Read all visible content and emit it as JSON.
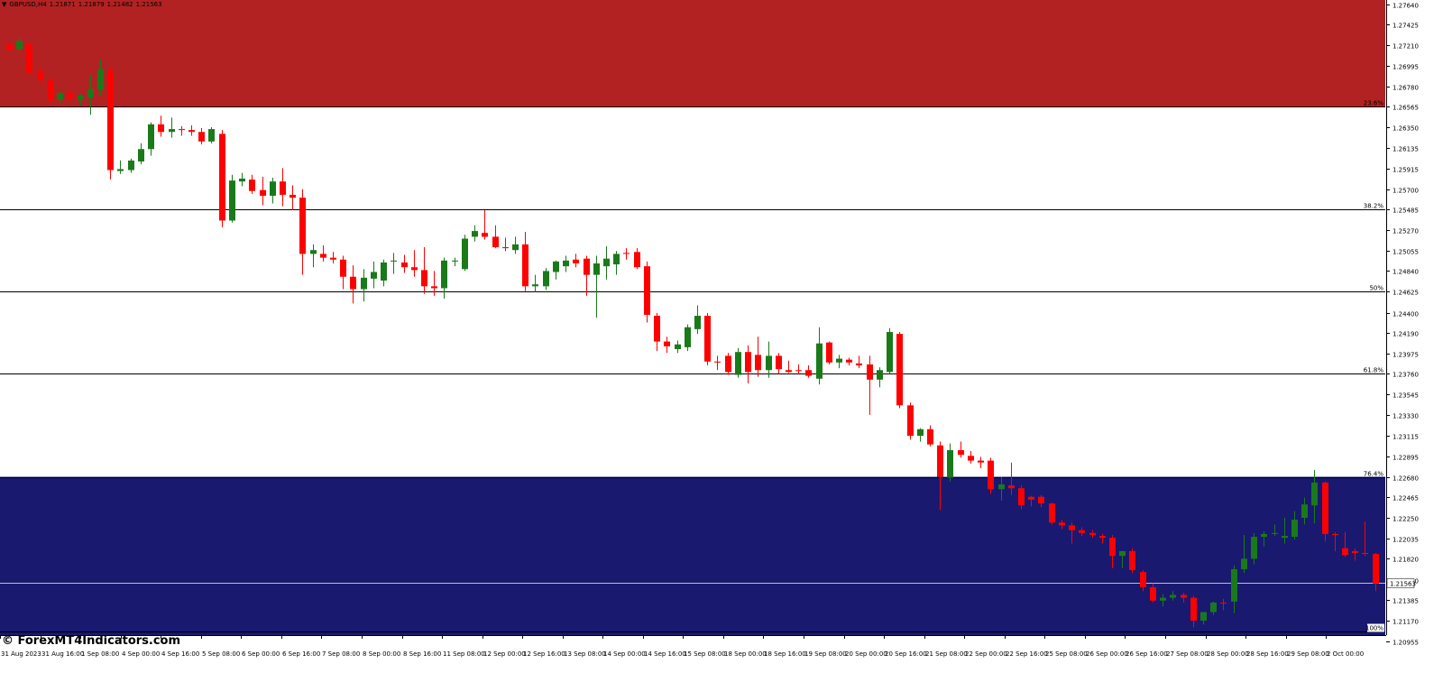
{
  "header": {
    "symbol": "GBPUSD,H4",
    "open": "1.21871",
    "high": "1.21879",
    "low": "1.21482",
    "close": "1.21563"
  },
  "watermark": "© ForexMT4Indicators.com",
  "colors": {
    "bull": "#1a7a1a",
    "bear": "#ff0000",
    "top_zone": "#b22222",
    "bottom_zone": "#191970",
    "fib_line": "#000000",
    "price_line": "#c0c0c0",
    "background": "#ffffff"
  },
  "chart_data": {
    "type": "candlestick",
    "timeframe": "H4",
    "ylim": [
      1.2095,
      1.2768
    ],
    "y_ticks": [
      "1.27640",
      "1.27425",
      "1.27210",
      "1.26995",
      "1.26780",
      "1.26565",
      "1.26350",
      "1.26135",
      "1.25915",
      "1.25700",
      "1.25485",
      "1.25270",
      "1.25055",
      "1.24840",
      "1.24625",
      "1.24400",
      "1.24190",
      "1.23975",
      "1.23760",
      "1.23545",
      "1.23330",
      "1.23115",
      "1.22895",
      "1.22680",
      "1.22465",
      "1.22250",
      "1.22035",
      "1.21820",
      "1.21600",
      "1.21385",
      "1.21170",
      "1.20955"
    ],
    "x_ticks": [
      "31 Aug 2023",
      "31 Aug 16:00",
      "1 Sep 08:00",
      "4 Sep 00:00",
      "4 Sep 16:00",
      "5 Sep 08:00",
      "6 Sep 00:00",
      "6 Sep 16:00",
      "7 Sep 08:00",
      "8 Sep 00:00",
      "8 Sep 16:00",
      "11 Sep 08:00",
      "12 Sep 00:00",
      "12 Sep 16:00",
      "13 Sep 08:00",
      "14 Sep 00:00",
      "14 Sep 16:00",
      "15 Sep 08:00",
      "18 Sep 00:00",
      "18 Sep 16:00",
      "19 Sep 08:00",
      "20 Sep 00:00",
      "20 Sep 16:00",
      "21 Sep 08:00",
      "22 Sep 00:00",
      "22 Sep 16:00",
      "25 Sep 08:00",
      "26 Sep 00:00",
      "26 Sep 16:00",
      "27 Sep 08:00",
      "28 Sep 00:00",
      "28 Sep 16:00",
      "29 Sep 08:00",
      "2 Oct 00:00"
    ],
    "fib_levels": [
      {
        "label": "23.6%",
        "price": 1.26565
      },
      {
        "label": "38.2%",
        "price": 1.25485
      },
      {
        "label": "50%",
        "price": 1.24625
      },
      {
        "label": "61.8%",
        "price": 1.2376
      },
      {
        "label": "76.4%",
        "price": 1.2268
      },
      {
        "label": "100%",
        "price": 1.2106
      }
    ],
    "current_price": "1.21563",
    "zones": [
      {
        "name": "upper",
        "from": 1.2768,
        "to": 1.26565
      },
      {
        "name": "lower",
        "from": 1.2268,
        "to": 1.20955
      }
    ],
    "candles": [
      [
        1.2722,
        1.2728,
        1.2712,
        1.2716
      ],
      [
        1.2717,
        1.273,
        1.2712,
        1.2726
      ],
      [
        1.2722,
        1.2725,
        1.269,
        1.2692
      ],
      [
        1.2693,
        1.27,
        1.268,
        1.2685
      ],
      [
        1.2684,
        1.2689,
        1.2661,
        1.2663
      ],
      [
        1.2664,
        1.2673,
        1.266,
        1.2671
      ],
      [
        1.2671,
        1.2675,
        1.2663,
        1.2665
      ],
      [
        1.2664,
        1.267,
        1.2658,
        1.2668
      ],
      [
        1.2666,
        1.269,
        1.2648,
        1.2675
      ],
      [
        1.2674,
        1.2706,
        1.2668,
        1.2696
      ],
      [
        1.2694,
        1.2697,
        1.258,
        1.259
      ],
      [
        1.2589,
        1.26,
        1.2586,
        1.2591
      ],
      [
        1.259,
        1.2602,
        1.2587,
        1.26
      ],
      [
        1.2599,
        1.2618,
        1.2596,
        1.2612
      ],
      [
        1.2612,
        1.264,
        1.2605,
        1.2638
      ],
      [
        1.2638,
        1.2647,
        1.2625,
        1.263
      ],
      [
        1.263,
        1.2645,
        1.2624,
        1.2633
      ],
      [
        1.2633,
        1.2636,
        1.2626,
        1.2632
      ],
      [
        1.2632,
        1.2637,
        1.2626,
        1.263
      ],
      [
        1.263,
        1.2634,
        1.2617,
        1.262
      ],
      [
        1.262,
        1.2635,
        1.2618,
        1.2633
      ],
      [
        1.2628,
        1.2632,
        1.253,
        1.2537
      ],
      [
        1.2537,
        1.2585,
        1.2535,
        1.2579
      ],
      [
        1.2578,
        1.2587,
        1.2573,
        1.2581
      ],
      [
        1.258,
        1.2585,
        1.2565,
        1.2568
      ],
      [
        1.2569,
        1.2583,
        1.2553,
        1.2563
      ],
      [
        1.2563,
        1.2582,
        1.2555,
        1.2578
      ],
      [
        1.2578,
        1.2592,
        1.2552,
        1.2564
      ],
      [
        1.2564,
        1.2574,
        1.2548,
        1.2561
      ],
      [
        1.2561,
        1.257,
        1.248,
        1.2502
      ],
      [
        1.2502,
        1.2512,
        1.2488,
        1.2506
      ],
      [
        1.2502,
        1.2511,
        1.2494,
        1.2498
      ],
      [
        1.2498,
        1.2504,
        1.2492,
        1.2496
      ],
      [
        1.2496,
        1.25,
        1.2465,
        1.2478
      ],
      [
        1.2478,
        1.249,
        1.245,
        1.2465
      ],
      [
        1.2465,
        1.2486,
        1.2452,
        1.2477
      ],
      [
        1.2476,
        1.2494,
        1.2466,
        1.2483
      ],
      [
        1.2474,
        1.2496,
        1.2468,
        1.2493
      ],
      [
        1.2494,
        1.2503,
        1.2481,
        1.2495
      ],
      [
        1.2493,
        1.2501,
        1.2482,
        1.2488
      ],
      [
        1.2488,
        1.2506,
        1.2478,
        1.2485
      ],
      [
        1.2485,
        1.2509,
        1.246,
        1.2468
      ],
      [
        1.2468,
        1.2484,
        1.2458,
        1.2466
      ],
      [
        1.2466,
        1.2498,
        1.2455,
        1.2495
      ],
      [
        1.2494,
        1.2498,
        1.2489,
        1.2495
      ],
      [
        1.2486,
        1.2522,
        1.2484,
        1.2518
      ],
      [
        1.252,
        1.2532,
        1.2515,
        1.2526
      ],
      [
        1.2524,
        1.2548,
        1.2517,
        1.252
      ],
      [
        1.252,
        1.2532,
        1.2508,
        1.2509
      ],
      [
        1.2509,
        1.2519,
        1.2505,
        1.2508
      ],
      [
        1.2506,
        1.252,
        1.2502,
        1.2512
      ],
      [
        1.2512,
        1.2525,
        1.2463,
        1.2468
      ],
      [
        1.2468,
        1.248,
        1.2462,
        1.247
      ],
      [
        1.2468,
        1.2487,
        1.2464,
        1.2484
      ],
      [
        1.2483,
        1.2495,
        1.2475,
        1.2494
      ],
      [
        1.2489,
        1.25,
        1.2483,
        1.2495
      ],
      [
        1.2496,
        1.2502,
        1.2488,
        1.2492
      ],
      [
        1.2497,
        1.25,
        1.2458,
        1.248
      ],
      [
        1.248,
        1.25,
        1.2435,
        1.2492
      ],
      [
        1.2489,
        1.251,
        1.2475,
        1.2497
      ],
      [
        1.2491,
        1.2505,
        1.248,
        1.2502
      ],
      [
        1.2503,
        1.2508,
        1.2496,
        1.2502
      ],
      [
        1.2504,
        1.2508,
        1.2486,
        1.2488
      ],
      [
        1.2489,
        1.2494,
        1.243,
        1.2438
      ],
      [
        1.2437,
        1.244,
        1.24,
        1.241
      ],
      [
        1.241,
        1.2415,
        1.2398,
        1.2405
      ],
      [
        1.2402,
        1.2411,
        1.2398,
        1.2407
      ],
      [
        1.2404,
        1.2428,
        1.24,
        1.2425
      ],
      [
        1.2423,
        1.2448,
        1.2418,
        1.2437
      ],
      [
        1.2437,
        1.244,
        1.2385,
        1.2389
      ],
      [
        1.2389,
        1.2395,
        1.238,
        1.2388
      ],
      [
        1.2395,
        1.2398,
        1.2375,
        1.2378
      ],
      [
        1.2375,
        1.2403,
        1.2372,
        1.2399
      ],
      [
        1.2399,
        1.2406,
        1.2366,
        1.2378
      ],
      [
        1.2396,
        1.2415,
        1.2373,
        1.238
      ],
      [
        1.238,
        1.241,
        1.2372,
        1.2395
      ],
      [
        1.2395,
        1.2398,
        1.2376,
        1.2381
      ],
      [
        1.238,
        1.239,
        1.2377,
        1.2378
      ],
      [
        1.238,
        1.2386,
        1.2376,
        1.2379
      ],
      [
        1.238,
        1.2385,
        1.2372,
        1.2374
      ],
      [
        1.2371,
        1.2425,
        1.2365,
        1.2408
      ],
      [
        1.2409,
        1.241,
        1.2386,
        1.2388
      ],
      [
        1.2388,
        1.2396,
        1.2382,
        1.2392
      ],
      [
        1.2391,
        1.2393,
        1.2385,
        1.2388
      ],
      [
        1.2387,
        1.2395,
        1.2382,
        1.2385
      ],
      [
        1.2386,
        1.2395,
        1.2333,
        1.237
      ],
      [
        1.237,
        1.2383,
        1.2362,
        1.238
      ],
      [
        1.2378,
        1.2424,
        1.2376,
        1.242
      ],
      [
        1.2418,
        1.242,
        1.234,
        1.2343
      ],
      [
        1.2343,
        1.2346,
        1.2307,
        1.2311
      ],
      [
        1.2311,
        1.2319,
        1.2305,
        1.2318
      ],
      [
        1.2318,
        1.2322,
        1.23,
        1.2302
      ],
      [
        1.2301,
        1.2305,
        1.2233,
        1.2268
      ],
      [
        1.2267,
        1.2303,
        1.2263,
        1.2296
      ],
      [
        1.2296,
        1.2305,
        1.2288,
        1.2291
      ],
      [
        1.229,
        1.2295,
        1.2282,
        1.2285
      ],
      [
        1.2285,
        1.2289,
        1.2277,
        1.2283
      ],
      [
        1.2285,
        1.2288,
        1.225,
        1.2255
      ],
      [
        1.2255,
        1.2268,
        1.2243,
        1.226
      ],
      [
        1.2259,
        1.2283,
        1.2249,
        1.2256
      ],
      [
        1.2256,
        1.2259,
        1.2234,
        1.2238
      ],
      [
        1.2247,
        1.2248,
        1.2237,
        1.2244
      ],
      [
        1.2247,
        1.2249,
        1.2236,
        1.224
      ],
      [
        1.224,
        1.2241,
        1.2218,
        1.222
      ],
      [
        1.222,
        1.2223,
        1.2213,
        1.2217
      ],
      [
        1.2217,
        1.222,
        1.2198,
        1.2212
      ],
      [
        1.2212,
        1.2215,
        1.2206,
        1.2209
      ],
      [
        1.2209,
        1.2212,
        1.2204,
        1.2207
      ],
      [
        1.2206,
        1.2208,
        1.2198,
        1.2204
      ],
      [
        1.2204,
        1.2207,
        1.2172,
        1.2185
      ],
      [
        1.2185,
        1.219,
        1.2172,
        1.219
      ],
      [
        1.219,
        1.2193,
        1.2167,
        1.217
      ],
      [
        1.2168,
        1.217,
        1.2148,
        1.2152
      ],
      [
        1.2152,
        1.2156,
        1.2136,
        1.2138
      ],
      [
        1.2138,
        1.2145,
        1.2132,
        1.2141
      ],
      [
        1.2141,
        1.2148,
        1.2138,
        1.2144
      ],
      [
        1.2144,
        1.2146,
        1.2136,
        1.2141
      ],
      [
        1.2141,
        1.2143,
        1.211,
        1.2117
      ],
      [
        1.2117,
        1.2125,
        1.2113,
        1.2126
      ],
      [
        1.2126,
        1.2137,
        1.2123,
        1.2136
      ],
      [
        1.2136,
        1.214,
        1.2128,
        1.2135
      ],
      [
        1.2137,
        1.2175,
        1.2125,
        1.2171
      ],
      [
        1.2171,
        1.2207,
        1.2167,
        1.2182
      ],
      [
        1.2182,
        1.2209,
        1.2176,
        1.2205
      ],
      [
        1.2205,
        1.2211,
        1.2195,
        1.2208
      ],
      [
        1.2208,
        1.2218,
        1.2206,
        1.2209
      ],
      [
        1.2204,
        1.2225,
        1.2198,
        1.2206
      ],
      [
        1.2205,
        1.2232,
        1.2202,
        1.2223
      ],
      [
        1.2225,
        1.2246,
        1.2218,
        1.2239
      ],
      [
        1.2238,
        1.2275,
        1.2219,
        1.2262
      ],
      [
        1.2262,
        1.2263,
        1.22,
        1.2208
      ],
      [
        1.2208,
        1.221,
        1.219,
        1.2207
      ],
      [
        1.2193,
        1.221,
        1.2184,
        1.2186
      ],
      [
        1.219,
        1.2193,
        1.218,
        1.2188
      ],
      [
        1.2188,
        1.2221,
        1.2185,
        1.2187
      ],
      [
        1.2187,
        1.2188,
        1.2148,
        1.2156
      ]
    ]
  }
}
